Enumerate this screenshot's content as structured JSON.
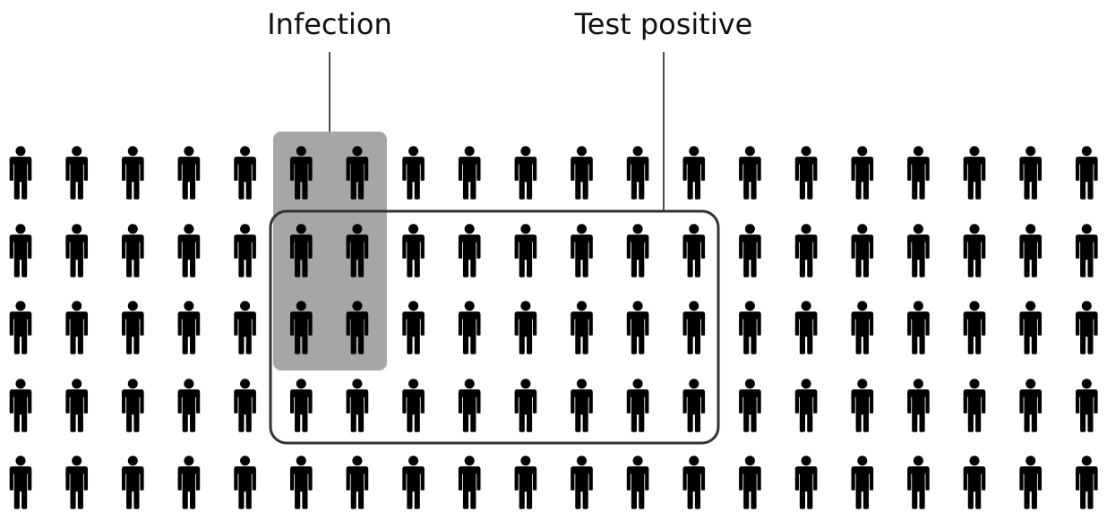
{
  "labels": {
    "infection": "Infection",
    "test_positive": "Test positive"
  },
  "grid": {
    "rows": 5,
    "columns": 20,
    "total_people": 100
  },
  "groups": {
    "infection": {
      "rows": [
        1,
        2,
        3
      ],
      "columns": [
        6,
        7
      ],
      "count": 6
    },
    "test_positive": {
      "rows": [
        2,
        3,
        4
      ],
      "columns": [
        6,
        7,
        8,
        9,
        10,
        11,
        12,
        13
      ],
      "count": 24
    },
    "infected_and_test_positive": 4
  },
  "colors": {
    "person": "#000000",
    "infection_fill": "#a6a6a6",
    "test_positive_outline": "#333333",
    "leader_line": "#222222",
    "background": "#ffffff"
  }
}
